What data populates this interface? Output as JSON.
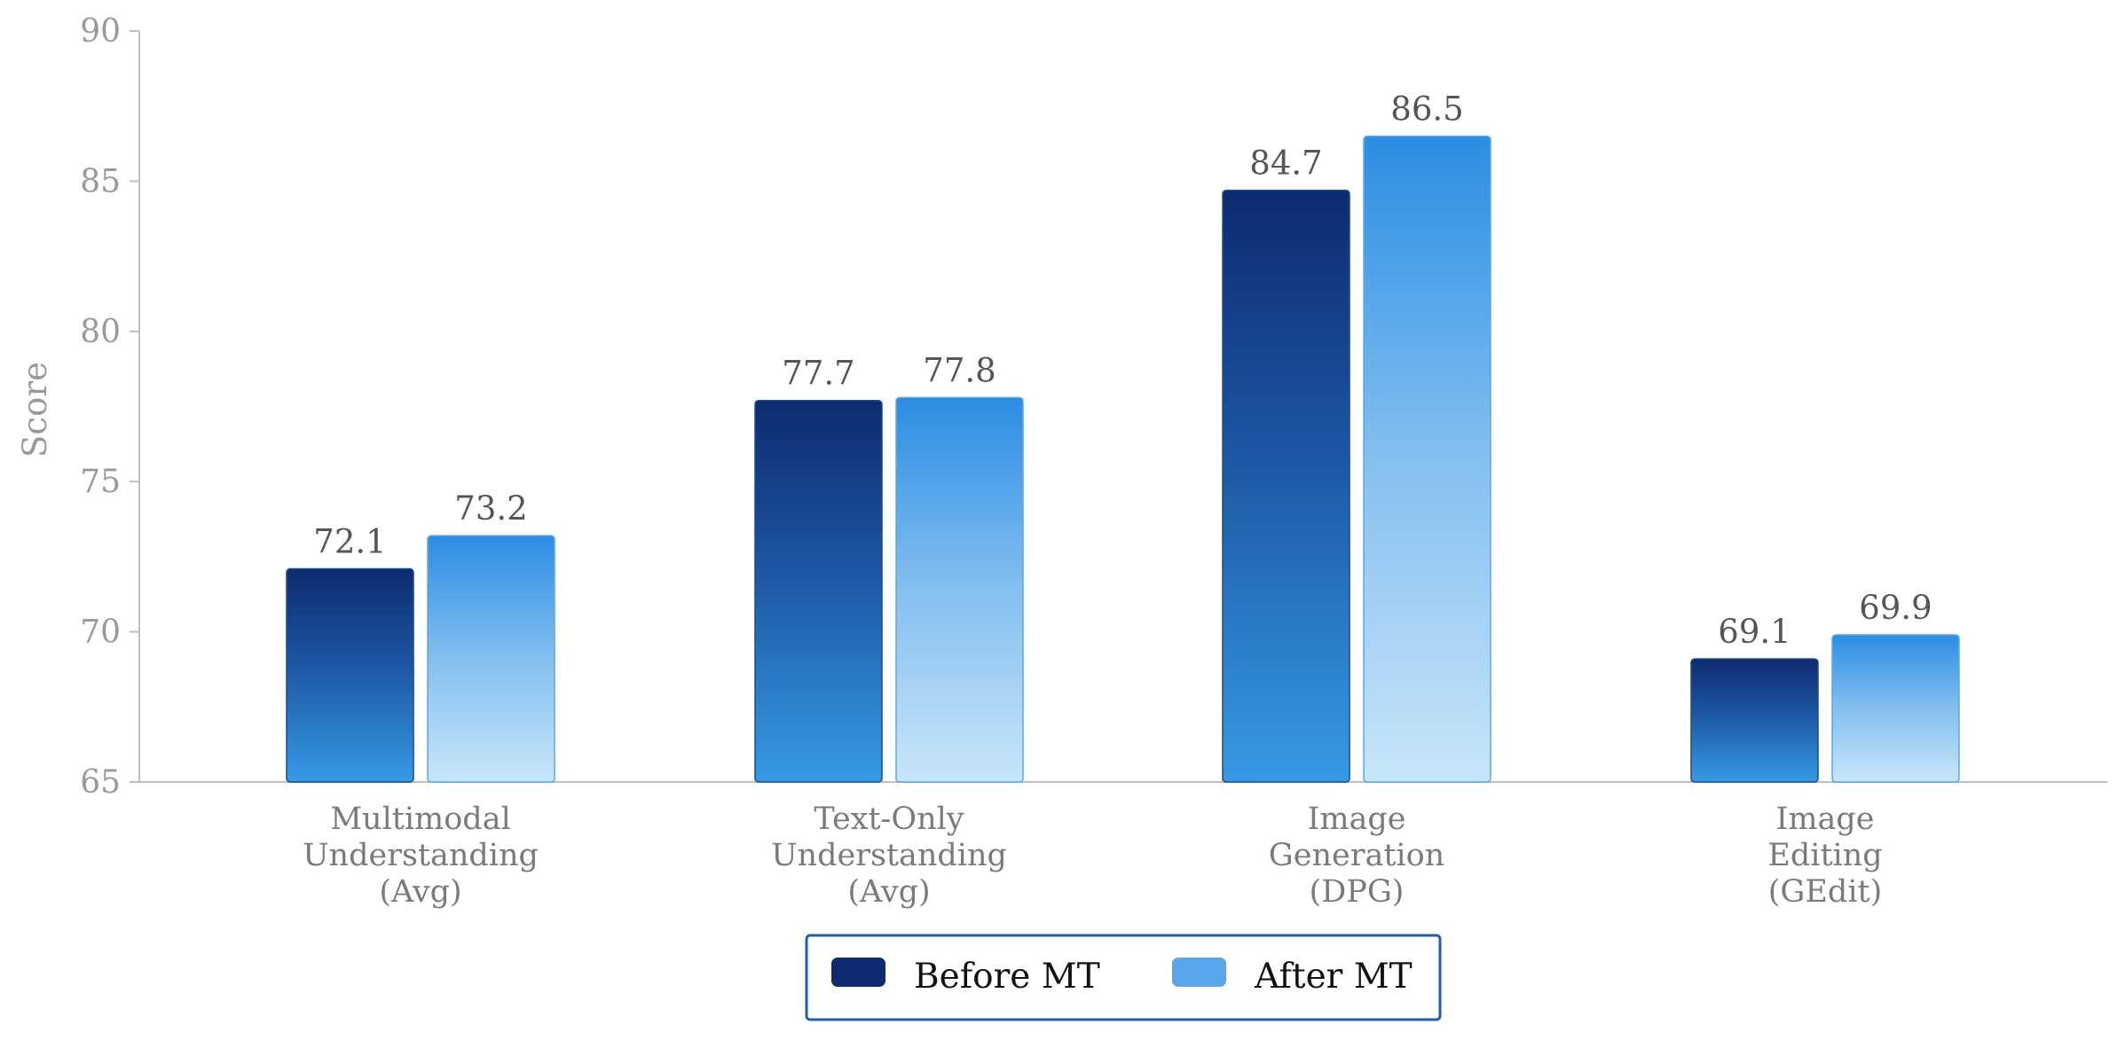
{
  "chart_data": {
    "type": "bar",
    "ylabel": "Score",
    "ylim": [
      65,
      90
    ],
    "yticks": [
      65,
      70,
      75,
      80,
      85,
      90
    ],
    "categories": [
      [
        "Multimodal",
        "Understanding",
        "(Avg)"
      ],
      [
        "Text-Only",
        "Understanding",
        "(Avg)"
      ],
      [
        "Image",
        "Generation",
        "(DPG)"
      ],
      [
        "Image",
        "Editing",
        "(GEdit)"
      ]
    ],
    "series": [
      {
        "name": "Before MT",
        "values": [
          72.1,
          77.7,
          84.7,
          69.1
        ],
        "color": "#0d2b6e"
      },
      {
        "name": "After MT",
        "values": [
          73.2,
          77.8,
          86.5,
          69.9
        ],
        "color": "#5ba6ea"
      }
    ],
    "legend": {
      "position": "bottom-center"
    },
    "grid": false
  }
}
